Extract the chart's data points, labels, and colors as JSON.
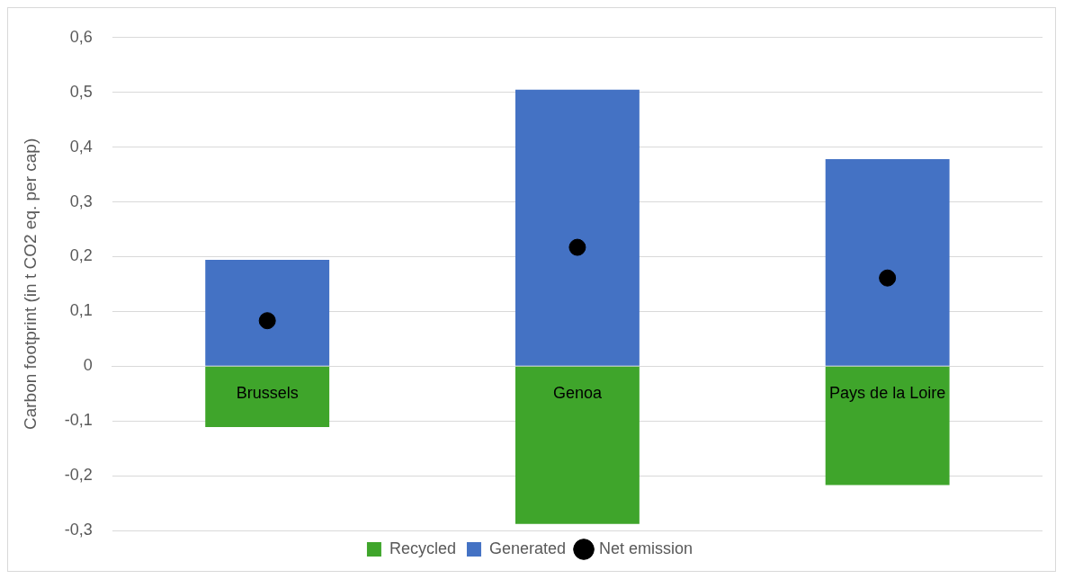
{
  "chart_data": {
    "type": "bar",
    "stacked": true,
    "ylabel": "Carbon footprint (in t CO2 eq. per cap)",
    "categories": [
      "Brussels",
      "Genoa",
      "Pays de la Loire"
    ],
    "series": [
      {
        "name": "Recycled",
        "color": "#3fa52b",
        "values": [
          -0.111,
          -0.288,
          -0.217
        ]
      },
      {
        "name": "Generated",
        "color": "#4472c4",
        "values": [
          0.194,
          0.505,
          0.378
        ]
      },
      {
        "name": "Net emission",
        "type": "scatter",
        "color": "#000000",
        "x": [
          "Brussels",
          "Genoa",
          "Pays de la Loire"
        ],
        "values": [
          0.083,
          0.217,
          0.161
        ]
      }
    ],
    "ylim": [
      -0.3,
      0.6
    ],
    "yticks": [
      {
        "value": -0.3,
        "label": "-0,3"
      },
      {
        "value": -0.2,
        "label": "-0,2"
      },
      {
        "value": -0.1,
        "label": "-0,1"
      },
      0,
      {
        "value": 0.1,
        "label": "0,1"
      },
      {
        "value": 0.2,
        "label": "0,2"
      },
      {
        "value": 0.3,
        "label": "0,3"
      },
      {
        "value": 0.4,
        "label": "0,4"
      },
      {
        "value": 0.5,
        "label": "0,5"
      },
      {
        "value": 0.6,
        "label": "0,6"
      }
    ],
    "grid": "y",
    "legend": "bottom",
    "marker": "circle"
  }
}
